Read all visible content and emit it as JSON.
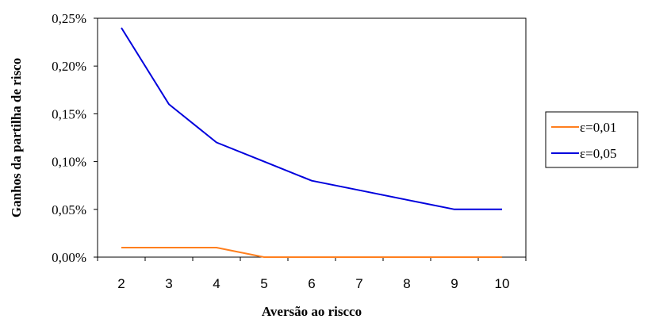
{
  "chart_data": {
    "type": "line",
    "title": "",
    "xlabel": "Aversão ao riscco",
    "ylabel": "Ganhos da partilha de risco",
    "categories": [
      "2",
      "3",
      "4",
      "5",
      "6",
      "7",
      "8",
      "9",
      "10"
    ],
    "ylim": [
      0,
      0.25
    ],
    "yticks": [
      0,
      0.05,
      0.1,
      0.15,
      0.2,
      0.25
    ],
    "ytick_labels": [
      "0,00%",
      "0,05%",
      "0,10%",
      "0,15%",
      "0,20%",
      "0,25%"
    ],
    "grid": false,
    "legend_position": "right",
    "series": [
      {
        "name": "ε=0,01",
        "color": "#ff7f1e",
        "values": [
          0.01,
          0.01,
          0.01,
          0.0,
          0.0,
          0.0,
          0.0,
          0.0,
          0.0
        ]
      },
      {
        "name": "ε=0,05",
        "color": "#0000dd",
        "values": [
          0.24,
          0.16,
          0.12,
          0.1,
          0.08,
          0.07,
          0.06,
          0.05,
          0.05
        ]
      }
    ]
  }
}
